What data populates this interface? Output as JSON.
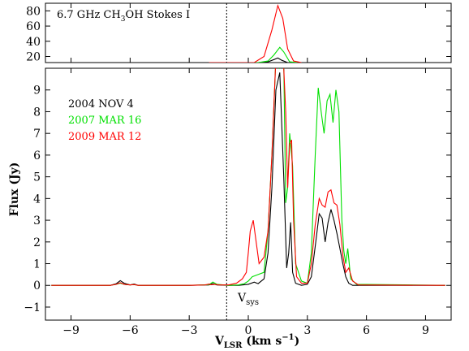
{
  "chart_data": [
    {
      "type": "line",
      "panel": "top",
      "title": "6.7 GHz CH3OH   Stokes I",
      "title_parts": {
        "pre": "6.7 GHz CH",
        "sub": "3",
        "post": "OH   Stokes I"
      },
      "xlim": [
        -10.3,
        10.3
      ],
      "ylim": [
        12,
        90
      ],
      "yticks": [
        20,
        40,
        60,
        80
      ],
      "vline_x": -1.1,
      "series": [
        {
          "name": "2004 NOV 4",
          "color": "#000000",
          "x": [
            -2.0,
            0.5,
            1.0,
            1.3,
            1.5,
            1.7,
            2.0,
            2.5
          ],
          "y": [
            12,
            12,
            13,
            16,
            18,
            15,
            12,
            12
          ]
        },
        {
          "name": "2007 MAR 16",
          "color": "#00e000",
          "x": [
            -2.0,
            0.5,
            1.0,
            1.3,
            1.6,
            1.8,
            2.1,
            2.5
          ],
          "y": [
            12,
            12,
            14,
            22,
            32,
            26,
            13,
            12
          ]
        },
        {
          "name": "2009 MAR 12",
          "color": "#ff0000",
          "x": [
            -2.0,
            0.3,
            0.8,
            1.2,
            1.5,
            1.75,
            2.0,
            2.3,
            2.7
          ],
          "y": [
            12,
            12,
            20,
            55,
            87,
            70,
            30,
            14,
            12
          ]
        }
      ]
    },
    {
      "type": "line",
      "panel": "bottom",
      "xlabel": "V_LSR (km s^-1)",
      "xlabel_parts": {
        "pre": "V",
        "sub": "LSR",
        "post": " (km s",
        "sup": "−1",
        "end": ")"
      },
      "ylabel": "Flux (Jy)",
      "xlim": [
        -10.3,
        10.3
      ],
      "ylim": [
        -1.6,
        10
      ],
      "xticks": [
        -9,
        -6,
        -3,
        0,
        3,
        6,
        9
      ],
      "xticklabels": [
        "−9",
        "−6",
        "−3",
        "0",
        "3",
        "6",
        "9"
      ],
      "yticks": [
        -1,
        0,
        1,
        2,
        3,
        4,
        5,
        6,
        7,
        8,
        9
      ],
      "yticklabels": [
        "−1",
        "0",
        "1",
        "2",
        "3",
        "4",
        "5",
        "6",
        "7",
        "8",
        "9"
      ],
      "vline_x": -1.1,
      "annotation": {
        "pre": "V",
        "sub": "sys"
      },
      "legend_position": "top-left",
      "series": [
        {
          "name": "2004 NOV 4",
          "color": "#000000",
          "x": [
            -10,
            -7.0,
            -6.7,
            -6.5,
            -6.3,
            -6.0,
            -5.8,
            -5.6,
            -3.0,
            -2.0,
            -1.8,
            -1.6,
            -1.0,
            -0.5,
            0.0,
            0.3,
            0.5,
            0.8,
            1.0,
            1.2,
            1.4,
            1.6,
            1.8,
            1.95,
            2.05,
            2.15,
            2.25,
            2.4,
            2.7,
            3.0,
            3.2,
            3.4,
            3.6,
            3.75,
            3.9,
            4.05,
            4.2,
            4.35,
            4.5,
            4.65,
            4.8,
            4.95,
            5.1,
            5.3,
            5.6,
            10
          ],
          "y": [
            0,
            0,
            0.08,
            0.22,
            0.1,
            0.02,
            0.06,
            0,
            0,
            0.02,
            0.08,
            0.02,
            0,
            0,
            0.05,
            0.15,
            0.08,
            0.3,
            1.5,
            4.5,
            9.0,
            9.8,
            5.0,
            0.8,
            1.5,
            2.9,
            0.6,
            0.1,
            0,
            0.05,
            0.4,
            1.8,
            3.3,
            3.1,
            2.0,
            2.9,
            3.5,
            3.0,
            2.4,
            1.7,
            1.0,
            0.4,
            0.1,
            0,
            0,
            0
          ]
        },
        {
          "name": "2007 MAR 16",
          "color": "#00e000",
          "x": [
            -10,
            -7.0,
            -6.7,
            -6.5,
            -6.3,
            -6.0,
            -5.8,
            -5.6,
            -3.0,
            -2.0,
            -1.8,
            -1.6,
            -1.0,
            -0.5,
            -0.2,
            0.0,
            0.2,
            0.5,
            0.8,
            1.0,
            1.2,
            1.4,
            1.6,
            1.8,
            1.9,
            2.0,
            2.1,
            2.25,
            2.4,
            2.7,
            3.0,
            3.2,
            3.4,
            3.55,
            3.7,
            3.85,
            4.0,
            4.15,
            4.3,
            4.45,
            4.6,
            4.75,
            4.85,
            4.95,
            5.05,
            5.2,
            5.5,
            10
          ],
          "y": [
            0,
            0,
            0.05,
            0.1,
            0.05,
            0.02,
            0.04,
            0,
            0,
            0.03,
            0.15,
            0.05,
            0,
            0.02,
            0.08,
            0.2,
            0.4,
            0.5,
            0.6,
            2.5,
            6.0,
            10.5,
            10.0,
            10.3,
            3.8,
            4.5,
            7.0,
            5.5,
            1.0,
            0.2,
            0.1,
            1.5,
            6.0,
            9.1,
            8.0,
            7.0,
            8.5,
            8.8,
            7.5,
            9.0,
            8.0,
            3.0,
            1.6,
            1.0,
            1.7,
            0.3,
            0.05,
            0
          ]
        },
        {
          "name": "2009 MAR 12",
          "color": "#ff0000",
          "x": [
            -10,
            -7.0,
            -6.7,
            -6.5,
            -6.3,
            -6.0,
            -5.8,
            -5.6,
            -3.0,
            -2.2,
            -2.0,
            -1.9,
            -1.7,
            -1.5,
            -1.0,
            -0.6,
            -0.3,
            -0.1,
            0.0,
            0.1,
            0.25,
            0.4,
            0.55,
            0.8,
            1.0,
            1.2,
            1.4,
            1.6,
            1.8,
            1.9,
            2.0,
            2.1,
            2.2,
            2.3,
            2.45,
            2.7,
            3.0,
            3.2,
            3.4,
            3.6,
            3.75,
            3.9,
            4.05,
            4.2,
            4.35,
            4.5,
            4.65,
            4.8,
            4.95,
            5.1,
            5.3,
            5.6,
            10
          ],
          "y": [
            0,
            0,
            0.05,
            0.12,
            0.05,
            0.02,
            0.04,
            0,
            0,
            0.02,
            0.06,
            0.03,
            0.05,
            0.02,
            0.02,
            0.1,
            0.3,
            0.6,
            1.5,
            2.5,
            3.0,
            2.0,
            1.0,
            1.3,
            2.5,
            6.0,
            10.5,
            10.3,
            10.0,
            8.0,
            4.5,
            6.5,
            6.7,
            3.0,
            0.4,
            0.1,
            0.1,
            1.0,
            2.8,
            4.0,
            3.7,
            3.6,
            4.3,
            4.4,
            3.8,
            3.7,
            2.8,
            1.4,
            0.6,
            0.8,
            0.2,
            0.02,
            0
          ]
        }
      ]
    }
  ]
}
